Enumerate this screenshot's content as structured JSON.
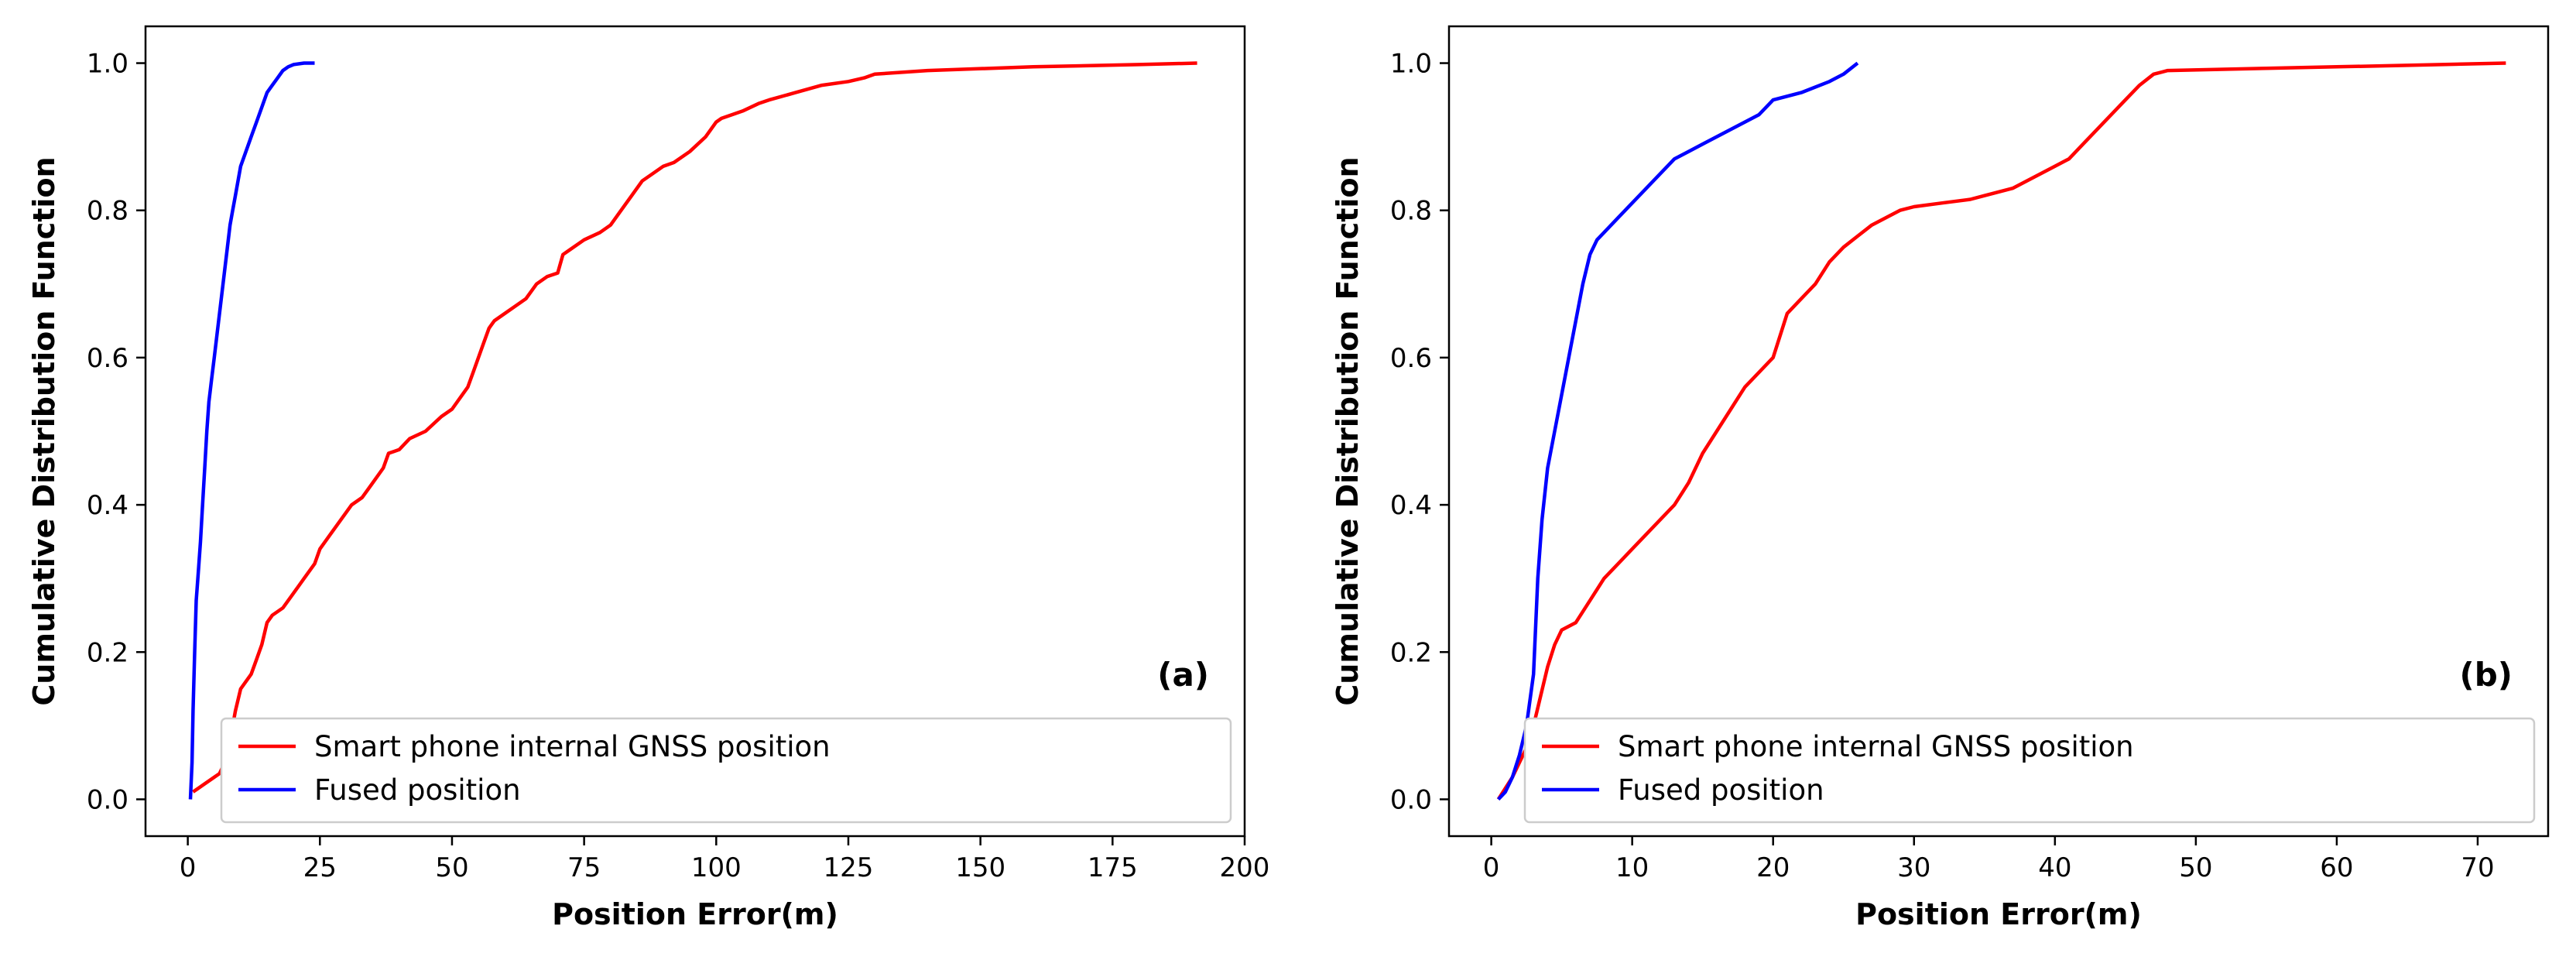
{
  "figure": {
    "colors": {
      "gnss": "#ff0000",
      "fused": "#0000ff",
      "axis": "#000000",
      "legend_border": "#cccccc"
    }
  },
  "chart_data": [
    {
      "id": "a",
      "type": "line",
      "panel_label": "(a)",
      "xlabel": "Position Error(m)",
      "ylabel": "Cumulative Distribution Function",
      "xlim": [
        -8,
        200
      ],
      "ylim": [
        -0.05,
        1.05
      ],
      "xticks": [
        0,
        25,
        50,
        75,
        100,
        125,
        150,
        175,
        200
      ],
      "yticks": [
        0.0,
        0.2,
        0.4,
        0.6,
        0.8,
        1.0
      ],
      "ytick_labels": [
        "0.0",
        "0.2",
        "0.4",
        "0.6",
        "0.8",
        "1.0"
      ],
      "legend_position": "lower-right",
      "series": [
        {
          "name": "Smart phone internal GNSS position",
          "color": "#ff0000",
          "x": [
            1,
            3,
            5,
            6,
            7,
            8,
            9,
            10,
            12,
            13,
            14,
            15,
            16,
            18,
            20,
            22,
            24,
            25,
            27,
            29,
            31,
            33,
            35,
            37,
            38,
            40,
            42,
            45,
            48,
            50,
            53,
            54,
            55,
            56,
            57,
            58,
            60,
            62,
            64,
            66,
            68,
            70,
            71,
            72,
            75,
            78,
            80,
            82,
            84,
            86,
            88,
            90,
            92,
            95,
            98,
            100,
            101,
            103,
            105,
            108,
            110,
            115,
            120,
            125,
            128,
            130,
            140,
            160,
            180,
            191
          ],
          "values": [
            0.01,
            0.02,
            0.03,
            0.035,
            0.05,
            0.08,
            0.12,
            0.15,
            0.17,
            0.19,
            0.21,
            0.24,
            0.25,
            0.26,
            0.28,
            0.3,
            0.32,
            0.34,
            0.36,
            0.38,
            0.4,
            0.41,
            0.43,
            0.45,
            0.47,
            0.475,
            0.49,
            0.5,
            0.52,
            0.53,
            0.56,
            0.58,
            0.6,
            0.62,
            0.64,
            0.65,
            0.66,
            0.67,
            0.68,
            0.7,
            0.71,
            0.715,
            0.74,
            0.745,
            0.76,
            0.77,
            0.78,
            0.8,
            0.82,
            0.84,
            0.85,
            0.86,
            0.865,
            0.88,
            0.9,
            0.92,
            0.925,
            0.93,
            0.935,
            0.945,
            0.95,
            0.96,
            0.97,
            0.975,
            0.98,
            0.985,
            0.99,
            0.995,
            0.998,
            1.0
          ]
        },
        {
          "name": "Fused position",
          "color": "#0000ff",
          "x": [
            0.5,
            0.8,
            1.0,
            1.3,
            1.6,
            2.0,
            2.4,
            2.8,
            3.2,
            3.6,
            4.0,
            4.5,
            5.0,
            5.5,
            6.0,
            6.5,
            7.0,
            7.5,
            8.0,
            8.5,
            9.0,
            9.5,
            10.0,
            11.0,
            12.0,
            13.0,
            14.0,
            15.0,
            16.0,
            17.0,
            18.0,
            19.0,
            20.0,
            22.0,
            24.0
          ],
          "values": [
            0.0,
            0.05,
            0.12,
            0.2,
            0.27,
            0.31,
            0.35,
            0.4,
            0.45,
            0.5,
            0.54,
            0.57,
            0.6,
            0.63,
            0.66,
            0.69,
            0.72,
            0.75,
            0.78,
            0.8,
            0.82,
            0.84,
            0.86,
            0.88,
            0.9,
            0.92,
            0.94,
            0.96,
            0.97,
            0.98,
            0.99,
            0.995,
            0.998,
            1.0,
            1.0
          ]
        }
      ]
    },
    {
      "id": "b",
      "type": "line",
      "panel_label": "(b)",
      "xlabel": "Position Error(m)",
      "ylabel": "Cumulative Distribution Function",
      "xlim": [
        -3,
        75
      ],
      "ylim": [
        -0.05,
        1.05
      ],
      "xticks": [
        0,
        10,
        20,
        30,
        40,
        50,
        60,
        70
      ],
      "yticks": [
        0.0,
        0.2,
        0.4,
        0.6,
        0.8,
        1.0
      ],
      "ytick_labels": [
        "0.0",
        "0.2",
        "0.4",
        "0.6",
        "0.8",
        "1.0"
      ],
      "legend_position": "lower-right",
      "series": [
        {
          "name": "Smart phone internal GNSS position",
          "color": "#ff0000",
          "x": [
            0.5,
            1.5,
            2.5,
            3.0,
            3.5,
            4.0,
            4.5,
            5.0,
            6.0,
            7.0,
            8.0,
            9.0,
            10.0,
            11.0,
            12.0,
            13.0,
            14.0,
            15.0,
            16.0,
            17.0,
            18.0,
            19.0,
            20.0,
            21.0,
            22.0,
            23.0,
            24.0,
            25.0,
            26.0,
            27.0,
            28.0,
            29.0,
            30.0,
            32.0,
            34.0,
            35.0,
            37.0,
            38.0,
            39.0,
            40.0,
            41.0,
            42.0,
            43.0,
            44.0,
            45.0,
            46.0,
            47.0,
            48.0,
            55.0,
            60.0,
            65.0,
            72.0
          ],
          "values": [
            0.0,
            0.03,
            0.07,
            0.1,
            0.14,
            0.18,
            0.21,
            0.23,
            0.24,
            0.27,
            0.3,
            0.32,
            0.34,
            0.36,
            0.38,
            0.4,
            0.43,
            0.47,
            0.5,
            0.53,
            0.56,
            0.58,
            0.6,
            0.66,
            0.68,
            0.7,
            0.73,
            0.75,
            0.765,
            0.78,
            0.79,
            0.8,
            0.805,
            0.81,
            0.815,
            0.82,
            0.83,
            0.84,
            0.85,
            0.86,
            0.87,
            0.89,
            0.91,
            0.93,
            0.95,
            0.97,
            0.985,
            0.99,
            0.993,
            0.995,
            0.997,
            1.0
          ]
        },
        {
          "name": "Fused position",
          "color": "#0000ff",
          "x": [
            0.5,
            1.0,
            1.5,
            2.0,
            2.5,
            3.0,
            3.3,
            3.6,
            4.0,
            4.5,
            5.0,
            5.5,
            6.0,
            6.5,
            7.0,
            7.5,
            8.0,
            9.0,
            10.0,
            11.0,
            12.0,
            13.0,
            14.0,
            15.0,
            16.0,
            17.0,
            18.0,
            19.0,
            20.0,
            22.0,
            24.0,
            25.0,
            26.0
          ],
          "values": [
            0.0,
            0.01,
            0.03,
            0.06,
            0.1,
            0.17,
            0.3,
            0.38,
            0.45,
            0.5,
            0.55,
            0.6,
            0.65,
            0.7,
            0.74,
            0.76,
            0.77,
            0.79,
            0.81,
            0.83,
            0.85,
            0.87,
            0.88,
            0.89,
            0.9,
            0.91,
            0.92,
            0.93,
            0.95,
            0.96,
            0.975,
            0.985,
            1.0
          ]
        }
      ]
    }
  ]
}
